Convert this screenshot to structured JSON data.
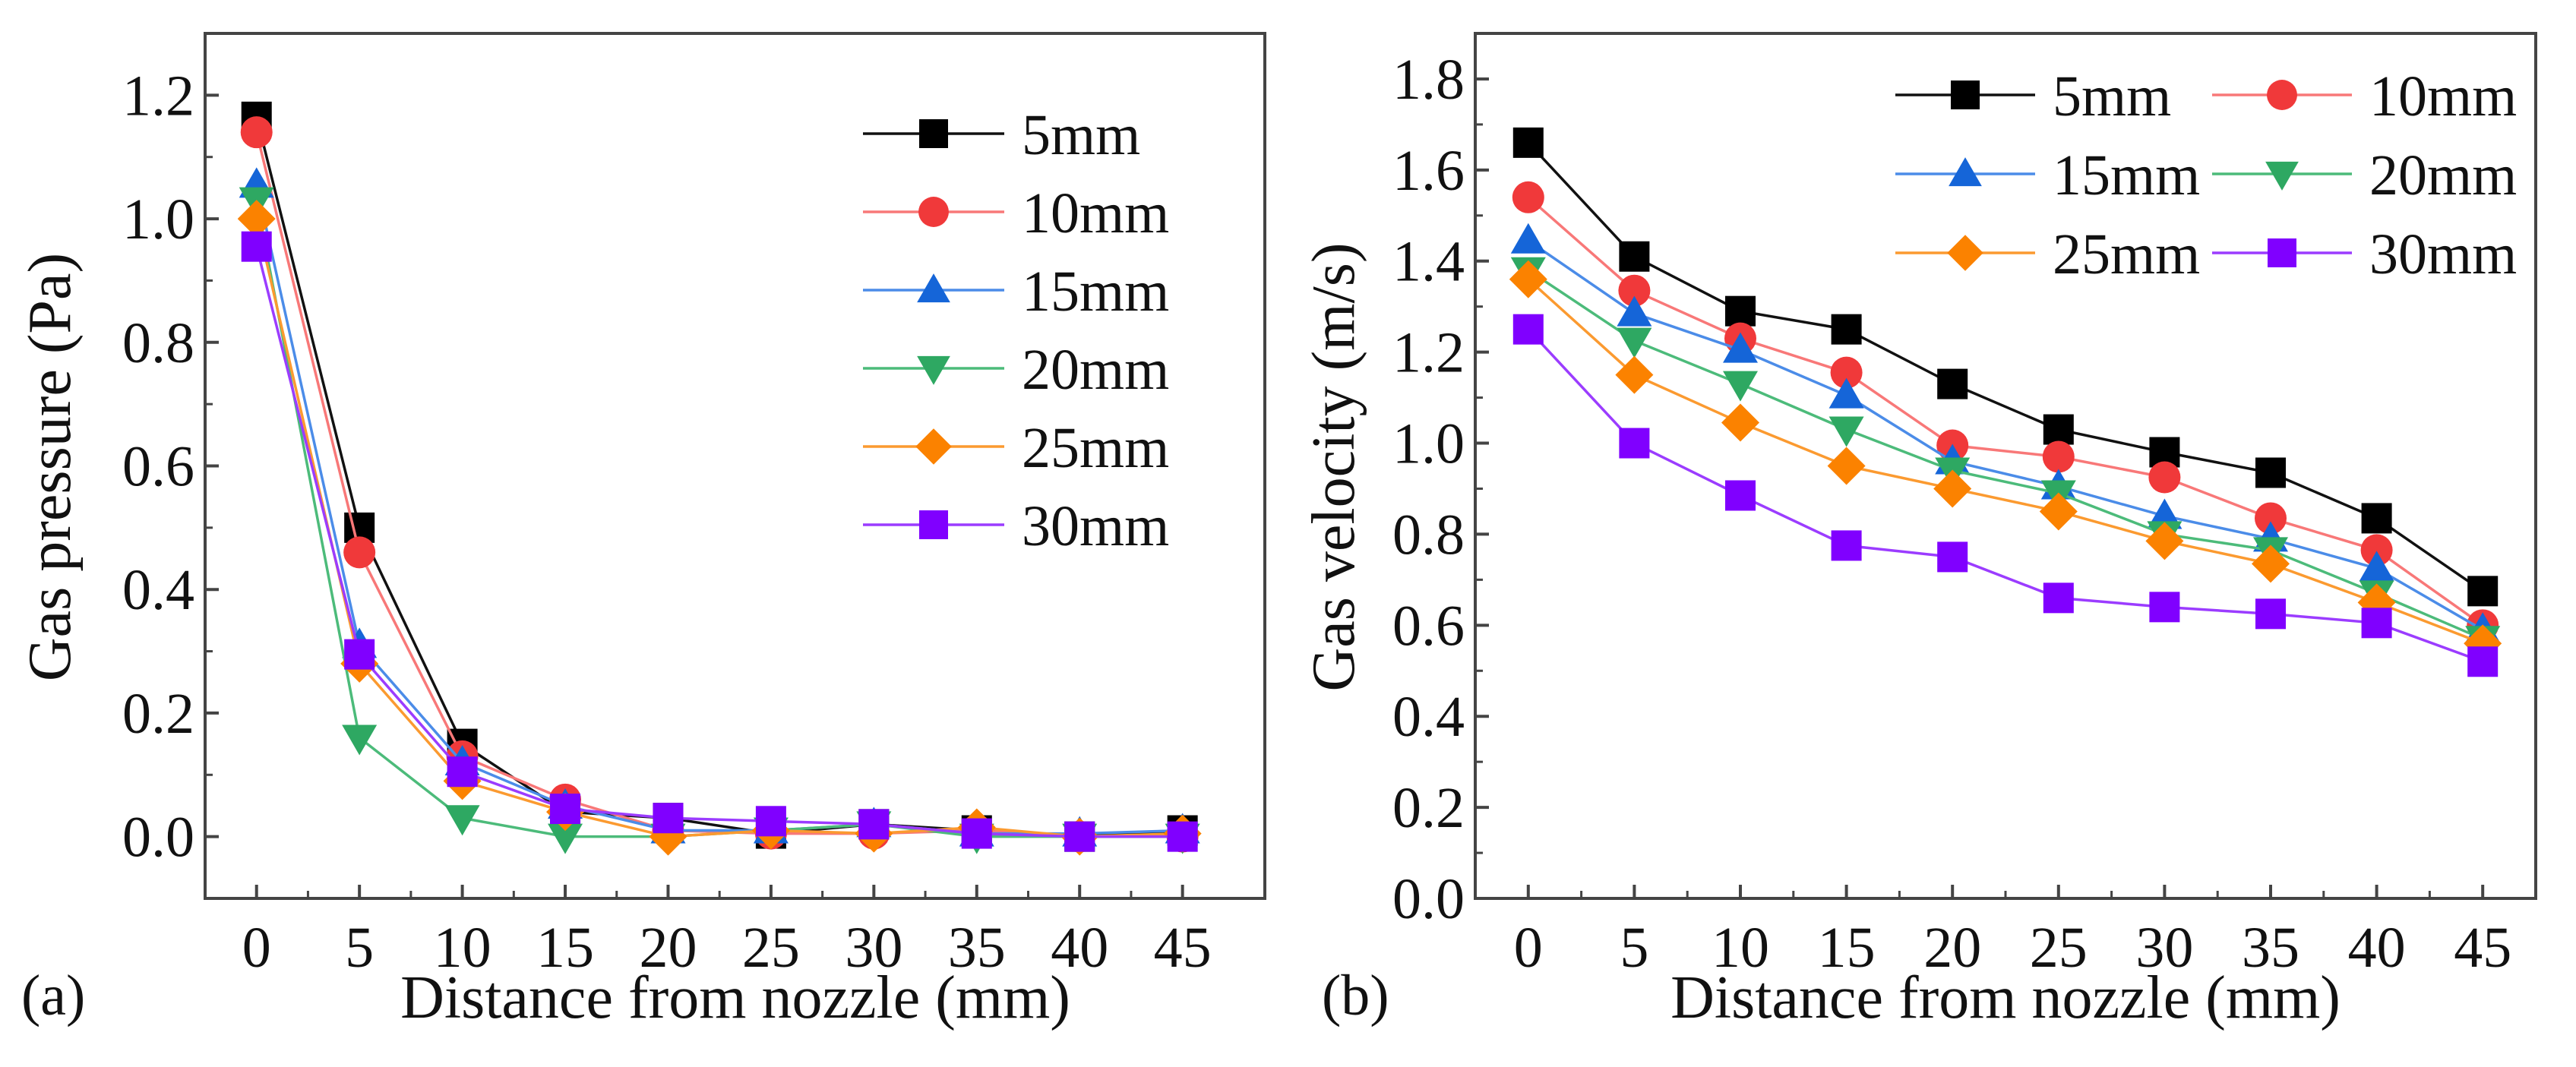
{
  "chart_data": [
    {
      "type": "line",
      "panel_label": "(a)",
      "xlabel": "Distance from nozzle (mm)",
      "ylabel": "Gas pressure (Pa)",
      "x": [
        0,
        5,
        10,
        15,
        20,
        25,
        30,
        35,
        40,
        45
      ],
      "xticks": [
        "0",
        "5",
        "10",
        "15",
        "20",
        "25",
        "30",
        "35",
        "40",
        "45"
      ],
      "yticks": [
        "0.0",
        "0.2",
        "0.4",
        "0.6",
        "0.8",
        "1.0",
        "1.2"
      ],
      "xlim": [
        -2.5,
        49
      ],
      "ylim": [
        -0.1,
        1.3
      ],
      "legend_position": "top-right",
      "legend_columns": 1,
      "series": [
        {
          "name": "5mm",
          "marker": "square",
          "color": "#000000",
          "line": "#111111",
          "values": [
            1.165,
            0.5,
            0.15,
            0.04,
            0.03,
            0.005,
            0.02,
            0.01,
            0.0,
            0.01
          ]
        },
        {
          "name": "10mm",
          "marker": "circle",
          "color": "#f0393a",
          "line": "#f87878",
          "values": [
            1.14,
            0.46,
            0.13,
            0.06,
            0.01,
            0.005,
            0.005,
            0.01,
            0.0,
            0.0
          ]
        },
        {
          "name": "15mm",
          "marker": "triangle-up",
          "color": "#1565d8",
          "line": "#4b8ce8",
          "values": [
            1.055,
            0.31,
            0.12,
            0.05,
            0.01,
            0.01,
            0.02,
            0.005,
            0.005,
            0.01
          ]
        },
        {
          "name": "20mm",
          "marker": "triangle-down",
          "color": "#2ea862",
          "line": "#4cbb7a",
          "values": [
            1.03,
            0.16,
            0.03,
            0.0,
            0.0,
            0.01,
            0.02,
            0.0,
            0.0,
            0.0
          ]
        },
        {
          "name": "25mm",
          "marker": "diamond",
          "color": "#fb8200",
          "line": "#fb9a30",
          "values": [
            1.0,
            0.28,
            0.09,
            0.04,
            0.0,
            0.01,
            0.005,
            0.015,
            0.0,
            0.005
          ]
        },
        {
          "name": "30mm",
          "marker": "square",
          "color": "#8000ff",
          "line": "#9b3cff",
          "values": [
            0.955,
            0.295,
            0.105,
            0.045,
            0.03,
            0.025,
            0.02,
            0.005,
            0.0,
            0.0
          ]
        }
      ]
    },
    {
      "type": "line",
      "panel_label": "(b)",
      "xlabel": "Distance from nozzle (mm)",
      "ylabel": "Gas velocity (m/s)",
      "x": [
        0,
        5,
        10,
        15,
        20,
        25,
        30,
        35,
        40,
        45
      ],
      "xticks": [
        "0",
        "5",
        "10",
        "15",
        "20",
        "25",
        "30",
        "35",
        "40",
        "45"
      ],
      "yticks": [
        "0.0",
        "0.2",
        "0.4",
        "0.6",
        "0.8",
        "1.0",
        "1.2",
        "1.4",
        "1.6",
        "1.8"
      ],
      "xlim": [
        -2.5,
        47.5
      ],
      "ylim": [
        0,
        1.9
      ],
      "legend_position": "top-right",
      "legend_columns": 2,
      "series": [
        {
          "name": "5mm",
          "marker": "square",
          "color": "#000000",
          "line": "#111111",
          "values": [
            1.66,
            1.41,
            1.29,
            1.25,
            1.13,
            1.03,
            0.98,
            0.935,
            0.835,
            0.675
          ]
        },
        {
          "name": "10mm",
          "marker": "circle",
          "color": "#f0393a",
          "line": "#f87878",
          "values": [
            1.54,
            1.335,
            1.23,
            1.155,
            0.995,
            0.97,
            0.925,
            0.835,
            0.765,
            0.6
          ]
        },
        {
          "name": "15mm",
          "marker": "triangle-up",
          "color": "#1565d8",
          "line": "#4b8ce8",
          "values": [
            1.445,
            1.285,
            1.205,
            1.105,
            0.96,
            0.905,
            0.84,
            0.79,
            0.725,
            0.59
          ]
        },
        {
          "name": "20mm",
          "marker": "triangle-down",
          "color": "#2ea862",
          "line": "#4cbb7a",
          "values": [
            1.38,
            1.225,
            1.13,
            1.03,
            0.94,
            0.89,
            0.8,
            0.765,
            0.67,
            0.57
          ]
        },
        {
          "name": "25mm",
          "marker": "diamond",
          "color": "#fb8200",
          "line": "#fb9a30",
          "values": [
            1.36,
            1.15,
            1.045,
            0.95,
            0.9,
            0.85,
            0.785,
            0.735,
            0.65,
            0.56
          ]
        },
        {
          "name": "30mm",
          "marker": "square",
          "color": "#8000ff",
          "line": "#9b3cff",
          "values": [
            1.25,
            1.0,
            0.885,
            0.775,
            0.75,
            0.66,
            0.64,
            0.625,
            0.605,
            0.52
          ]
        }
      ]
    }
  ]
}
